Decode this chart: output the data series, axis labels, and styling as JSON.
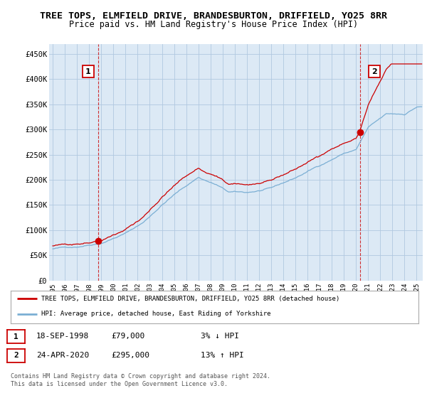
{
  "title": "TREE TOPS, ELMFIELD DRIVE, BRANDESBURTON, DRIFFIELD, YO25 8RR",
  "subtitle": "Price paid vs. HM Land Registry's House Price Index (HPI)",
  "ylabel_ticks": [
    "£0",
    "£50K",
    "£100K",
    "£150K",
    "£200K",
    "£250K",
    "£300K",
    "£350K",
    "£400K",
    "£450K"
  ],
  "ytick_values": [
    0,
    50000,
    100000,
    150000,
    200000,
    250000,
    300000,
    350000,
    400000,
    450000
  ],
  "ylim": [
    0,
    470000
  ],
  "xlim_start": 1994.7,
  "xlim_end": 2025.5,
  "xtick_years": [
    1995,
    1996,
    1997,
    1998,
    1999,
    2000,
    2001,
    2002,
    2003,
    2004,
    2005,
    2006,
    2007,
    2008,
    2009,
    2010,
    2011,
    2012,
    2013,
    2014,
    2015,
    2016,
    2017,
    2018,
    2019,
    2020,
    2021,
    2022,
    2023,
    2024,
    2025
  ],
  "hpi_color": "#7bafd4",
  "price_color": "#cc0000",
  "marker_color": "#cc0000",
  "dashed_line_color": "#cc0000",
  "plot_bg_color": "#dce9f5",
  "background_color": "#ffffff",
  "grid_color": "#b0c8e0",
  "sale1_x": 1998.72,
  "sale1_y": 79000,
  "sale1_label": "1",
  "sale2_x": 2020.32,
  "sale2_y": 295000,
  "sale2_label": "2",
  "legend_property": "TREE TOPS, ELMFIELD DRIVE, BRANDESBURTON, DRIFFIELD, YO25 8RR (detached house)",
  "legend_hpi": "HPI: Average price, detached house, East Riding of Yorkshire",
  "table_row1": [
    "1",
    "18-SEP-1998",
    "£79,000",
    "3% ↓ HPI"
  ],
  "table_row2": [
    "2",
    "24-APR-2020",
    "£295,000",
    "13% ↑ HPI"
  ],
  "footer": "Contains HM Land Registry data © Crown copyright and database right 2024.\nThis data is licensed under the Open Government Licence v3.0.",
  "title_fontsize": 9.5,
  "subtitle_fontsize": 8.5
}
